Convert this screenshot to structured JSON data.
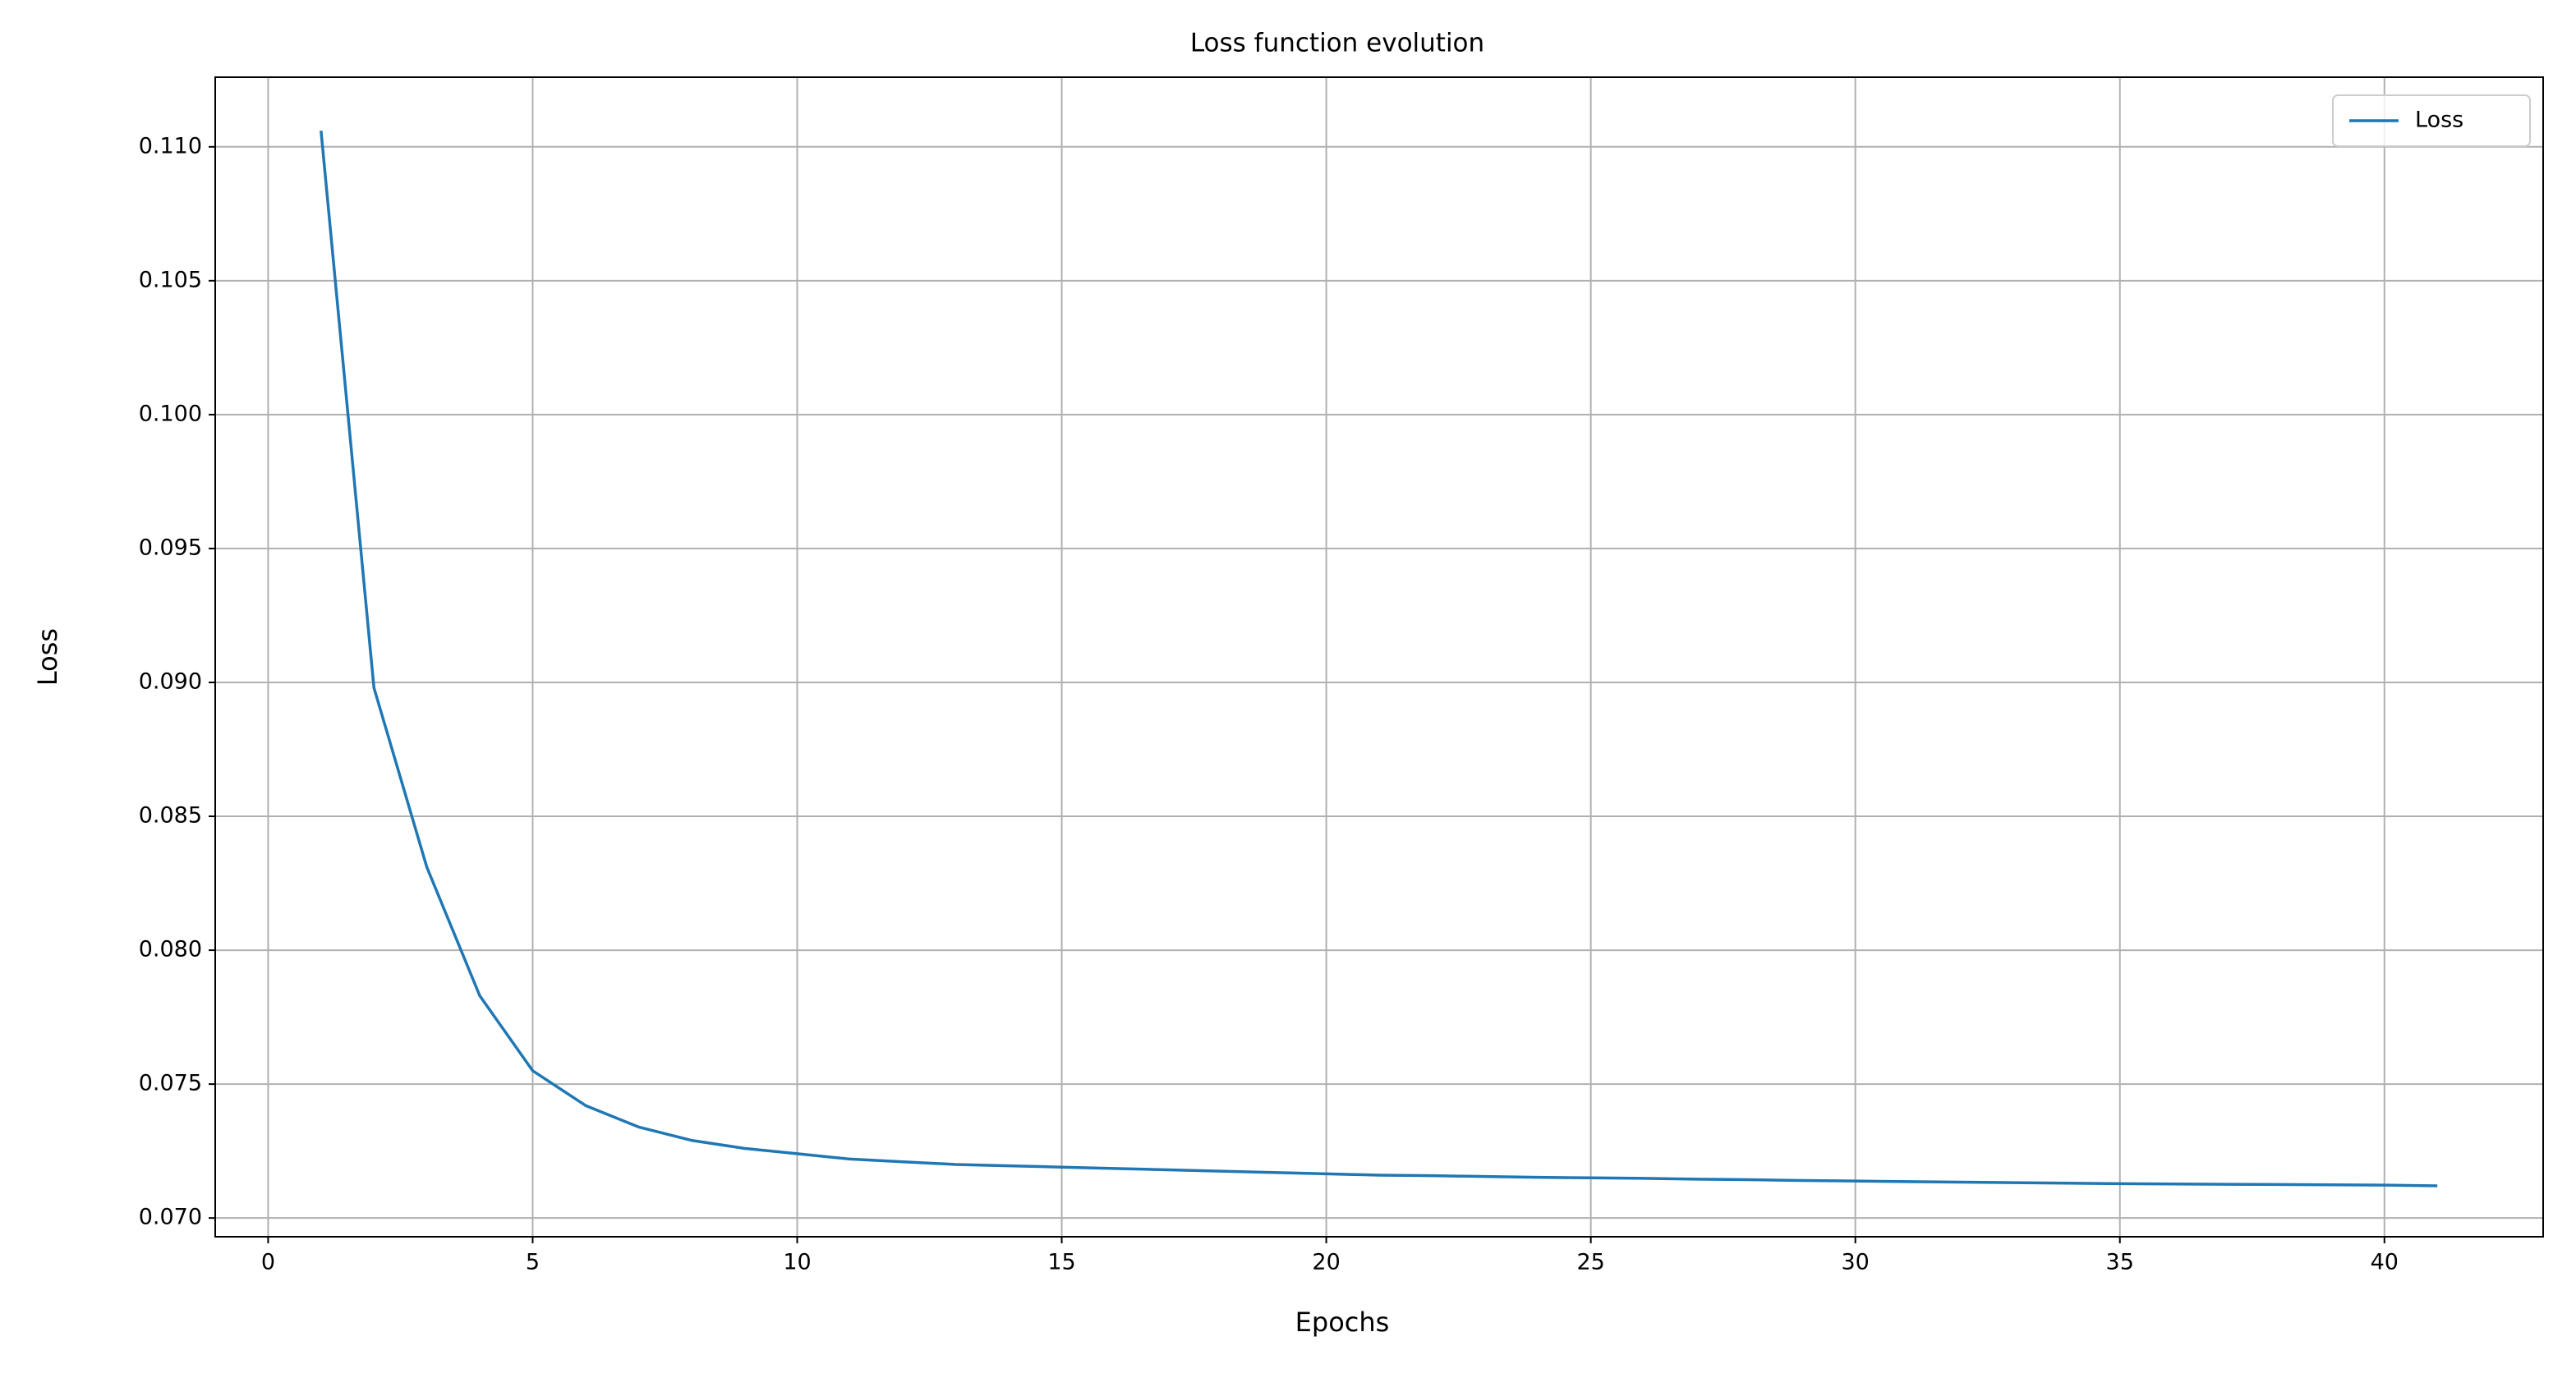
{
  "chart_data": {
    "type": "line",
    "title": "Loss function evolution",
    "xlabel": "Epochs",
    "ylabel": "Loss",
    "x": [
      1,
      2,
      3,
      4,
      5,
      6,
      7,
      8,
      9,
      10,
      11,
      12,
      13,
      14,
      15,
      16,
      17,
      18,
      19,
      20,
      21,
      22,
      23,
      24,
      25,
      26,
      27,
      28,
      29,
      30,
      31,
      32,
      33,
      34,
      35,
      36,
      37,
      38,
      39,
      40,
      41
    ],
    "series": [
      {
        "name": "Loss",
        "color": "#1f77b4",
        "values": [
          0.1106,
          0.0898,
          0.0831,
          0.0783,
          0.0755,
          0.0742,
          0.0734,
          0.0729,
          0.0726,
          0.0724,
          0.0722,
          0.0721,
          0.072,
          0.07195,
          0.0719,
          0.07185,
          0.0718,
          0.07175,
          0.0717,
          0.07165,
          0.0716,
          0.07158,
          0.07155,
          0.07152,
          0.0715,
          0.07148,
          0.07145,
          0.07143,
          0.0714,
          0.07138,
          0.07136,
          0.07134,
          0.07132,
          0.0713,
          0.07128,
          0.07127,
          0.07126,
          0.07125,
          0.07124,
          0.07123,
          0.0712
        ]
      }
    ],
    "xlim": [
      -1,
      43
    ],
    "xticks": [
      0,
      5,
      10,
      15,
      20,
      25,
      30,
      35,
      40
    ],
    "ylim": [
      0.0693,
      0.1126
    ],
    "yticks": [
      {
        "value": 0.07,
        "label": "0.070"
      },
      0.075,
      {
        "value": 0.08,
        "label": "0.080"
      },
      0.085,
      {
        "value": 0.09,
        "label": "0.090"
      },
      0.095,
      {
        "value": 0.1,
        "label": "0.100"
      },
      0.105,
      {
        "value": 0.11,
        "label": "0.110"
      }
    ],
    "grid": true,
    "legend": "upper right"
  }
}
